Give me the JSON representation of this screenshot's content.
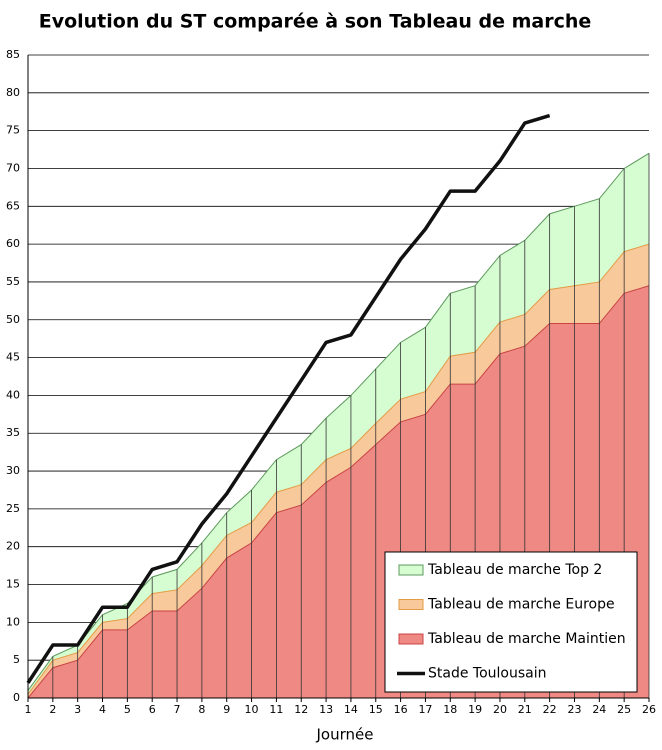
{
  "chart_data": {
    "type": "area",
    "title": "Evolution du ST comparée à son Tableau de marche",
    "x_label": "Journée",
    "x": [
      1,
      2,
      3,
      4,
      5,
      6,
      7,
      8,
      9,
      10,
      11,
      12,
      13,
      14,
      15,
      16,
      17,
      18,
      19,
      20,
      21,
      22,
      23,
      24,
      25,
      26
    ],
    "xlim": [
      1,
      26
    ],
    "xticks": [
      1,
      2,
      3,
      4,
      5,
      6,
      7,
      8,
      9,
      10,
      11,
      12,
      13,
      14,
      15,
      16,
      17,
      18,
      19,
      20,
      21,
      22,
      23,
      24,
      25,
      26
    ],
    "ylim": [
      0,
      85
    ],
    "yticks": [
      0,
      5,
      10,
      15,
      20,
      25,
      30,
      35,
      40,
      45,
      50,
      55,
      60,
      65,
      70,
      75,
      80,
      85
    ],
    "grid": true,
    "legend": "lower right",
    "series": [
      {
        "name": "Tableau de marche Top 2",
        "color": "#d6fcd2",
        "edge": "#5c9a5c",
        "kind": "area",
        "values": [
          1,
          5.5,
          7,
          11,
          12.5,
          16,
          17,
          20.5,
          24.5,
          27.5,
          31.5,
          33.5,
          37,
          40,
          43.5,
          47,
          49,
          53.5,
          54.5,
          58.5,
          60.5,
          64,
          65,
          66,
          70,
          72
        ]
      },
      {
        "name": "Tableau de marche Europe",
        "color": "#f8c99b",
        "edge": "#e49b45",
        "kind": "area",
        "values": [
          0.5,
          5,
          6,
          10,
          10.5,
          13.8,
          14.3,
          17.5,
          21.5,
          23.2,
          27.2,
          28.2,
          31.5,
          33,
          36.3,
          39.5,
          40.5,
          45.2,
          45.7,
          49.7,
          50.7,
          54,
          54.5,
          55,
          59,
          60
        ]
      },
      {
        "name": "Tableau de marche Maintien",
        "color": "#ee8984",
        "edge": "#c84444",
        "kind": "area",
        "values": [
          0,
          4,
          5,
          9,
          9,
          11.5,
          11.5,
          14.5,
          18.5,
          20.5,
          24.5,
          25.5,
          28.5,
          30.5,
          33.5,
          36.5,
          37.5,
          41.5,
          41.5,
          45.5,
          46.5,
          49.5,
          49.5,
          49.5,
          53.5,
          54.5
        ]
      },
      {
        "name": "Stade Toulousain",
        "color": "#111111",
        "kind": "line",
        "values": [
          2,
          7,
          7,
          12,
          12,
          17,
          18,
          23,
          27,
          32,
          37,
          42,
          47,
          48,
          53,
          58,
          62,
          67,
          67,
          71,
          76,
          77,
          null,
          null,
          null,
          null
        ]
      }
    ]
  }
}
